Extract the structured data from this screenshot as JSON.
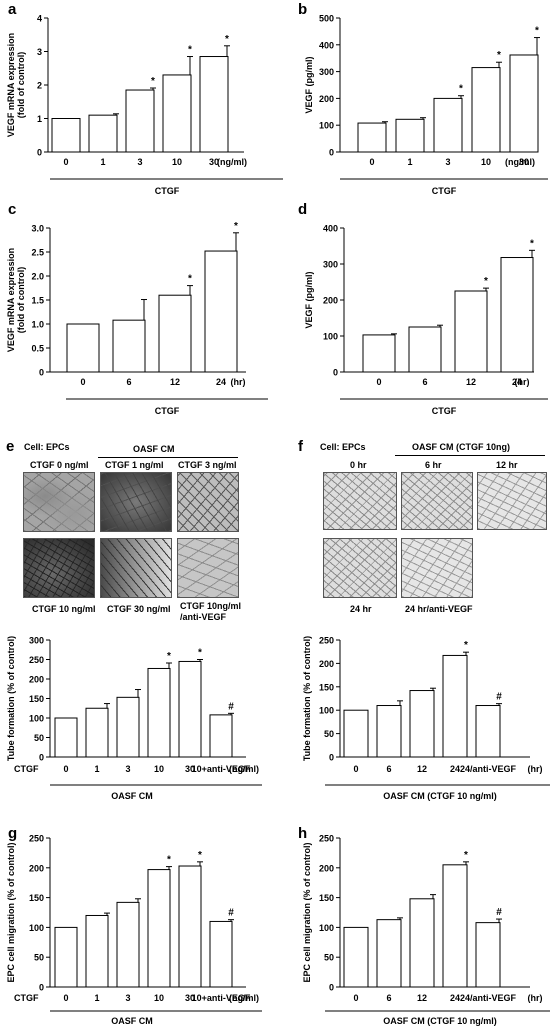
{
  "chart_data": [
    {
      "panel": "a",
      "type": "bar",
      "categories": [
        "0",
        "1",
        "3",
        "10",
        "30"
      ],
      "unit": "(ng/ml)",
      "group_label": "CTGF",
      "ylabel": "VEGF mRNA expression (fold of control)",
      "ylim": [
        0,
        4
      ],
      "yticks": [
        "0",
        "1",
        "2",
        "3",
        "4"
      ],
      "values": [
        1.0,
        1.1,
        1.85,
        2.3,
        2.85
      ],
      "errors": [
        0.0,
        0.04,
        0.06,
        0.55,
        0.32
      ],
      "marks": [
        "",
        "",
        "*",
        "*",
        "*"
      ]
    },
    {
      "panel": "b",
      "type": "bar",
      "categories": [
        "0",
        "1",
        "3",
        "10",
        "30"
      ],
      "unit": "(ng/ml)",
      "group_label": "CTGF",
      "ylabel": "VEGF (pg/ml)",
      "ylim": [
        0,
        500
      ],
      "yticks": [
        "0",
        "100",
        "200",
        "300",
        "400",
        "500"
      ],
      "values": [
        108,
        122,
        200,
        315,
        362
      ],
      "errors": [
        5,
        6,
        10,
        20,
        65
      ],
      "marks": [
        "",
        "",
        "*",
        "*",
        "*"
      ]
    },
    {
      "panel": "c",
      "type": "bar",
      "categories": [
        "0",
        "6",
        "12",
        "24"
      ],
      "unit": "(hr)",
      "group_label": "CTGF",
      "ylabel": "VEGF mRNA expression (fold of control)",
      "ylim": [
        0,
        3
      ],
      "yticks": [
        "0",
        "0.5",
        "1.0",
        "1.5",
        "2.0",
        "2.5",
        "3.0"
      ],
      "values": [
        1.0,
        1.08,
        1.6,
        2.52
      ],
      "errors": [
        0.0,
        0.43,
        0.2,
        0.38
      ],
      "marks": [
        "",
        "",
        "*",
        "*"
      ]
    },
    {
      "panel": "d",
      "type": "bar",
      "categories": [
        "0",
        "6",
        "12",
        "24"
      ],
      "unit": "(hr)",
      "group_label": "CTGF",
      "ylabel": "VEGF (pg/ml)",
      "ylim": [
        0,
        400
      ],
      "yticks": [
        "0",
        "100",
        "200",
        "300",
        "400"
      ],
      "values": [
        103,
        125,
        225,
        318
      ],
      "errors": [
        3,
        5,
        8,
        20
      ],
      "marks": [
        "",
        "",
        "*",
        "*"
      ]
    },
    {
      "panel": "e",
      "type": "bar",
      "prefix_label": "CTGF",
      "categories": [
        "0",
        "1",
        "3",
        "10",
        "30",
        "10+anti-VEGF"
      ],
      "unit": "(ng/ml)",
      "group_label": "OASF CM",
      "ylabel": "Tube formation (% of control)",
      "ylim": [
        0,
        300
      ],
      "yticks": [
        "0",
        "50",
        "100",
        "150",
        "200",
        "250",
        "300"
      ],
      "values": [
        100,
        125,
        153,
        227,
        245,
        108
      ],
      "errors": [
        0,
        12,
        20,
        14,
        5,
        4
      ],
      "marks": [
        "",
        "",
        "",
        "*",
        "*",
        "#"
      ]
    },
    {
      "panel": "f",
      "type": "bar",
      "categories": [
        "0",
        "6",
        "12",
        "24",
        "24/anti-VEGF"
      ],
      "unit": "(hr)",
      "group_label": "OASF CM (CTGF 10 ng/ml)",
      "ylabel": "Tube formation (% of control)",
      "ylim": [
        0,
        250
      ],
      "yticks": [
        "0",
        "50",
        "100",
        "150",
        "200",
        "250"
      ],
      "values": [
        100,
        110,
        142,
        217,
        110
      ],
      "errors": [
        0,
        10,
        5,
        7,
        4
      ],
      "marks": [
        "",
        "",
        "",
        "*",
        "#"
      ]
    },
    {
      "panel": "g",
      "type": "bar",
      "prefix_label": "CTGF",
      "categories": [
        "0",
        "1",
        "3",
        "10",
        "30",
        "10+anti-VEGF"
      ],
      "unit": "(ng/ml)",
      "group_label": "OASF CM",
      "ylabel": "EPC cell migration (% of control)",
      "ylim": [
        0,
        250
      ],
      "yticks": [
        "0",
        "50",
        "100",
        "150",
        "200",
        "250"
      ],
      "values": [
        100,
        120,
        142,
        197,
        203,
        110
      ],
      "errors": [
        0,
        4,
        6,
        5,
        7,
        3
      ],
      "marks": [
        "",
        "",
        "",
        "*",
        "*",
        "#"
      ]
    },
    {
      "panel": "h",
      "type": "bar",
      "categories": [
        "0",
        "6",
        "12",
        "24",
        "24/anti-VEGF"
      ],
      "unit": "(hr)",
      "group_label": "OASF CM (CTGF 10 ng/ml)",
      "ylabel": "EPC cell migration (% of control)",
      "ylim": [
        0,
        250
      ],
      "yticks": [
        "0",
        "50",
        "100",
        "150",
        "200",
        "250"
      ],
      "values": [
        100,
        113,
        148,
        205,
        108
      ],
      "errors": [
        0,
        3,
        7,
        5,
        6
      ],
      "marks": [
        "",
        "",
        "",
        "*",
        "#"
      ]
    }
  ],
  "photos": {
    "e": {
      "letter": "e",
      "cell_label": "Cell: EPCs",
      "condition": "OASF CM",
      "labels": [
        "CTGF 0 ng/ml",
        "CTGF 1 ng/ml",
        "CTGF 3 ng/ml",
        "CTGF 10 ng/ml",
        "CTGF 30 ng/ml",
        "CTGF 10ng/ml",
        "/anti-VEGF"
      ]
    },
    "f": {
      "letter": "f",
      "cell_label": "Cell: EPCs",
      "condition": "OASF CM (CTGF 10ng)",
      "labels": [
        "0 hr",
        "6 hr",
        "12 hr",
        "24 hr",
        "24 hr/anti-VEGF"
      ]
    }
  }
}
